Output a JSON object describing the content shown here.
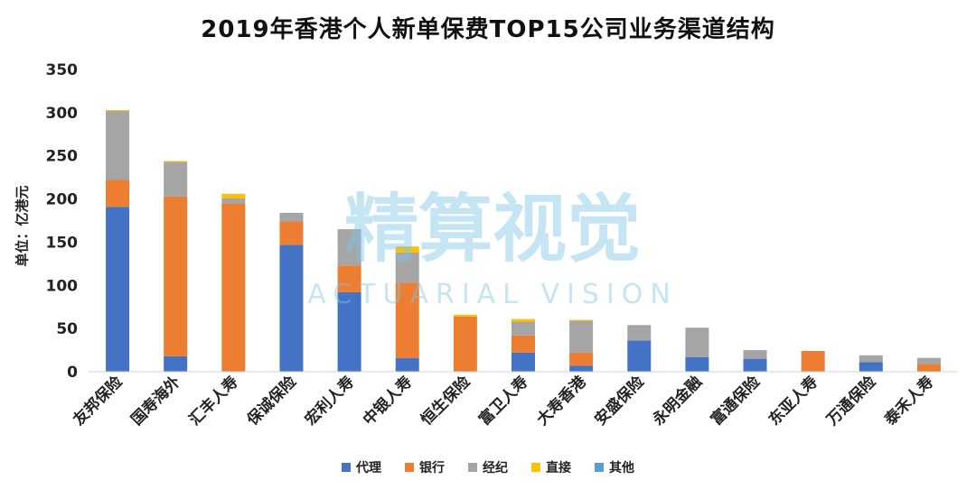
{
  "chart_data": {
    "type": "bar",
    "stacked": true,
    "title": "2019年香港个人新单保费TOP15公司业务渠道结构",
    "ylabel": "单位：亿港元",
    "xlabel": "",
    "ylim": [
      0,
      350
    ],
    "yticks": [
      0,
      50,
      100,
      150,
      200,
      250,
      300,
      350
    ],
    "categories": [
      "友邦保险",
      "国寿海外",
      "汇丰人寿",
      "保诚保险",
      "宏利人寿",
      "中银人寿",
      "恒生保险",
      "富卫人寿",
      "大寿香港",
      "安盛保险",
      "永明金融",
      "富通保险",
      "东亚人寿",
      "万通保险",
      "泰禾人寿"
    ],
    "series": [
      {
        "name": "代理",
        "color": "#4472C4",
        "values": [
          191,
          18,
          0,
          147,
          92,
          16,
          0,
          22,
          7,
          36,
          17,
          15,
          0,
          11,
          0
        ]
      },
      {
        "name": "银行",
        "color": "#ED7D31",
        "values": [
          31,
          185,
          195,
          27,
          31,
          87,
          64,
          20,
          15,
          0,
          0,
          0,
          24,
          0,
          9
        ]
      },
      {
        "name": "经纪",
        "color": "#A5A5A5",
        "values": [
          80,
          40,
          6,
          10,
          42,
          35,
          0,
          16,
          37,
          18,
          34,
          10,
          0,
          8,
          7
        ]
      },
      {
        "name": "直接",
        "color": "#FFC000",
        "values": [
          1,
          1,
          5,
          0,
          0,
          7,
          2,
          3,
          1,
          0,
          0,
          0,
          0,
          0,
          0
        ]
      },
      {
        "name": "其他",
        "color": "#5B9BD5",
        "values": [
          0,
          0,
          0,
          0,
          0,
          0,
          0,
          0,
          0,
          0,
          0,
          0,
          0,
          0,
          0
        ]
      }
    ],
    "grid": false,
    "legend_position": "bottom"
  },
  "watermark": {
    "text_cn": "精算视觉",
    "text_en": "ACTUARIAL VISION"
  }
}
